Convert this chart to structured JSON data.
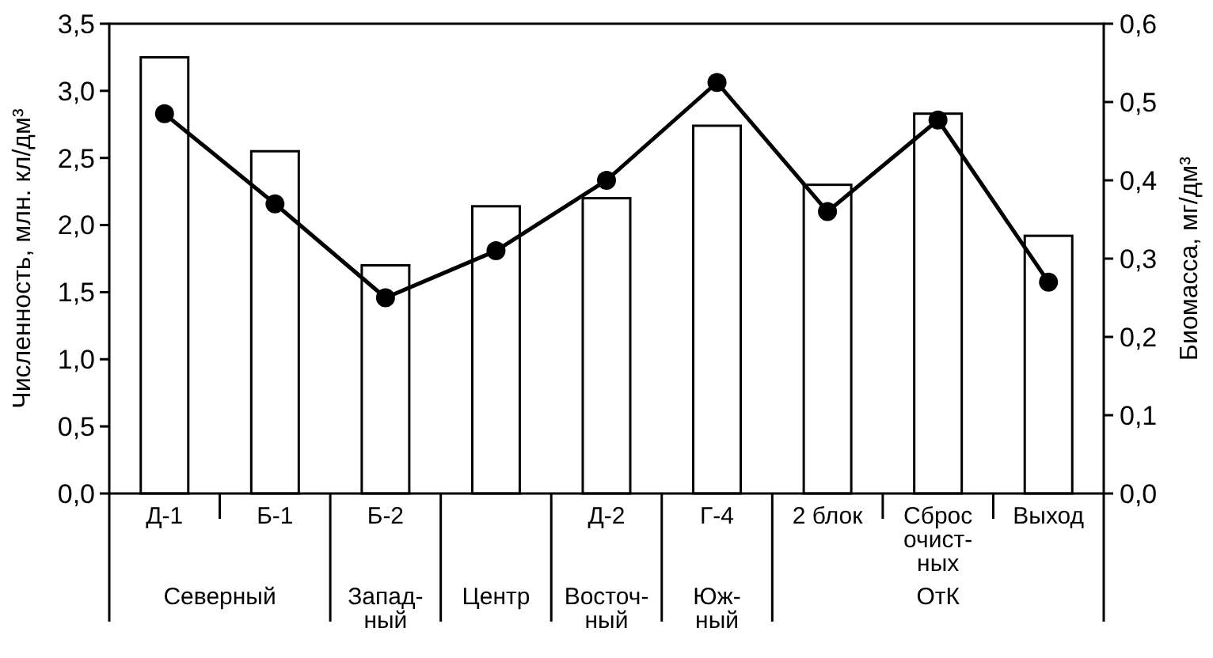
{
  "chart_data": {
    "type": "bar",
    "ylabel": "Численность, млн. кл/дм³",
    "y2label": "Биомасса, мг/дм³",
    "categories": [
      "Д-1",
      "Б-1",
      "Б-2",
      null,
      "Д-2",
      "Г-4",
      "2 блок",
      "Сброс\nочист-\nных",
      "Выход"
    ],
    "series": [
      {
        "color": "#ffffff",
        "values": [
          3.25,
          2.55,
          1.7,
          2.14,
          2.2,
          2.74,
          2.3,
          2.83,
          1.92
        ]
      },
      {
        "type": "line",
        "axis": "y2",
        "color": "#000000",
        "marker": "circle",
        "line_style": "solid",
        "values": [
          0.485,
          0.37,
          0.25,
          0.31,
          0.4,
          0.525,
          0.36,
          0.477,
          0.27
        ]
      }
    ],
    "ylim": [
      0,
      3.5
    ],
    "yticks": [
      {
        "value": 0,
        "label": "0,0"
      },
      {
        "value": 0.5,
        "label": "0,5"
      },
      {
        "value": 1,
        "label": "1,0"
      },
      {
        "value": 1.5,
        "label": "1,5"
      },
      {
        "value": 2,
        "label": "2,0"
      },
      {
        "value": 2.5,
        "label": "2,5"
      },
      {
        "value": 3,
        "label": "3,0"
      },
      {
        "value": 3.5,
        "label": "3,5"
      }
    ],
    "y2lim": [
      0,
      0.6
    ],
    "y2ticks": [
      {
        "value": 0,
        "label": "0,0"
      },
      {
        "value": 0.1,
        "label": "0,1"
      },
      {
        "value": 0.2,
        "label": "0,2"
      },
      {
        "value": 0.3,
        "label": "0,3"
      },
      {
        "value": 0.4,
        "label": "0,4"
      },
      {
        "value": 0.5,
        "label": "0,5"
      },
      {
        "value": 0.6,
        "label": "0,6"
      }
    ],
    "annotations": [
      "Северный",
      "Запад-\nный",
      "Центр",
      "Восточ-\nный",
      "Юж-\nный",
      "ОтК"
    ]
  }
}
